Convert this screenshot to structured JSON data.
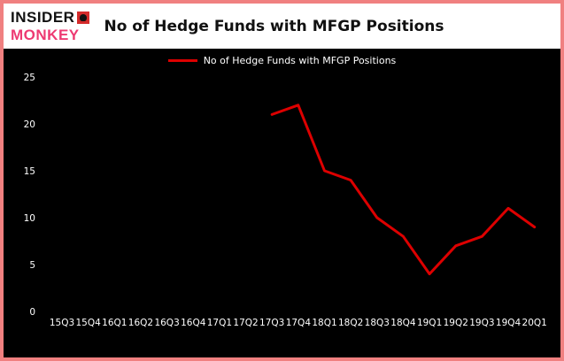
{
  "brand": {
    "line1": "INSIDER",
    "line2": "MONKEY"
  },
  "header": {
    "title": "No of Hedge Funds with MFGP Positions"
  },
  "legend": {
    "label": "No of Hedge Funds with MFGP Positions",
    "line_color": "#dd0000"
  },
  "colors": {
    "frame_border": "#f08080",
    "header_bg": "#ffffff",
    "chart_bg": "#000000",
    "tick_text": "#ffffff",
    "line": "#dd0000",
    "brand_monkey_text": "#ed3a72",
    "brand_square": "#d42b2b"
  },
  "chart_data": {
    "type": "line",
    "title": "No of Hedge Funds with MFGP Positions",
    "categories": [
      "15Q3",
      "15Q4",
      "16Q1",
      "16Q2",
      "16Q3",
      "16Q4",
      "17Q1",
      "17Q2",
      "17Q3",
      "17Q4",
      "18Q1",
      "18Q2",
      "18Q3",
      "18Q4",
      "19Q1",
      "19Q2",
      "19Q3",
      "19Q4",
      "20Q1"
    ],
    "values": [
      null,
      null,
      null,
      null,
      null,
      null,
      null,
      null,
      21,
      22,
      15,
      14,
      10,
      8,
      4,
      7,
      8,
      11,
      9
    ],
    "series": [
      {
        "name": "No of Hedge Funds with MFGP Positions",
        "values": [
          null,
          null,
          null,
          null,
          null,
          null,
          null,
          null,
          21,
          22,
          15,
          14,
          10,
          8,
          4,
          7,
          8,
          11,
          9
        ]
      }
    ],
    "xlabel": "",
    "ylabel": "",
    "yticks": [
      0,
      5,
      10,
      15,
      20,
      25
    ],
    "ylim": [
      0,
      25
    ],
    "grid": false,
    "legend_position": "top-center",
    "line_color": "#dd0000",
    "background": "#000000"
  }
}
